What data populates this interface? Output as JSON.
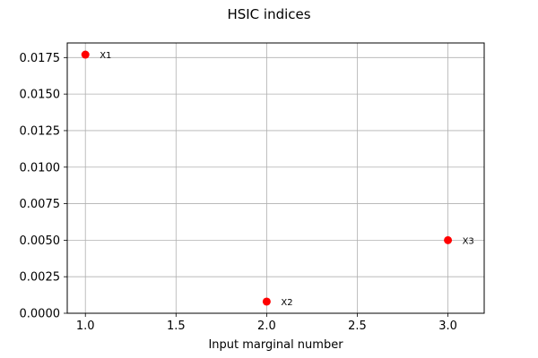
{
  "chart_data": {
    "type": "scatter",
    "title": "HSIC indices",
    "xlabel": "Input marginal number",
    "ylabel": "",
    "xlim": [
      0.9,
      3.2
    ],
    "ylim": [
      0.0,
      0.0185
    ],
    "xticks": [
      1.0,
      1.5,
      2.0,
      2.5,
      3.0
    ],
    "xtick_labels": [
      "1.0",
      "1.5",
      "2.0",
      "2.5",
      "3.0"
    ],
    "yticks": [
      0.0,
      0.0025,
      0.005,
      0.0075,
      0.01,
      0.0125,
      0.015,
      0.0175
    ],
    "ytick_labels": [
      "0.0000",
      "0.0025",
      "0.0050",
      "0.0075",
      "0.0100",
      "0.0125",
      "0.0150",
      "0.0175"
    ],
    "grid": true,
    "series": [
      {
        "color": "#ff0000",
        "points": [
          {
            "x": 1.0,
            "y": 0.0177,
            "label": "X1"
          },
          {
            "x": 2.0,
            "y": 0.0008,
            "label": "X2"
          },
          {
            "x": 3.0,
            "y": 0.005,
            "label": "X3"
          }
        ]
      }
    ]
  }
}
